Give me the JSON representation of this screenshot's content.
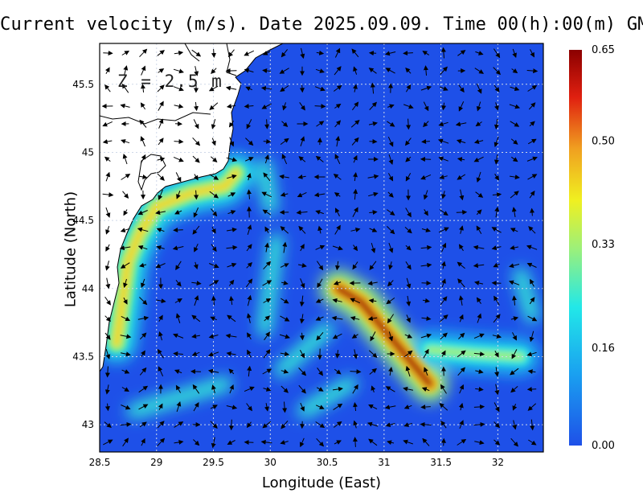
{
  "title": "Current velocity (m/s). Date 2025.09.09. Time 00(h):00(m) GMT",
  "depth_label": "Z = 2.5 m",
  "chart_data": {
    "type": "vector-field-map",
    "title": "Current velocity (m/s). Date 2025.09.09. Time 00(h):00(m) GMT",
    "annotation": "Z = 2.5 m",
    "xlabel": "Longitude (East)",
    "ylabel": "Latitude (North)",
    "xlim": [
      28.5,
      32.4
    ],
    "ylim": [
      42.8,
      45.8
    ],
    "xticks": [
      "28.5",
      "29",
      "29.5",
      "30",
      "30.5",
      "31",
      "31.5",
      "32"
    ],
    "yticks": [
      "43",
      "43.5",
      "44",
      "44.5",
      "45",
      "45.5"
    ],
    "colorbar": {
      "ticks": [
        "0.00",
        "0.16",
        "0.33",
        "0.50",
        "0.65"
      ],
      "range": [
        0.0,
        0.65
      ],
      "colors": [
        "#1e50e8",
        "#1aa0f0",
        "#22e8e8",
        "#9ef078",
        "#f0f020",
        "#f0a020",
        "#e02010",
        "#8b0000"
      ]
    },
    "grid": true,
    "jets": [
      {
        "name": "coastal",
        "path": [
          [
            29.7,
            44.85
          ],
          [
            29.6,
            44.75
          ],
          [
            29.3,
            44.7
          ],
          [
            29.0,
            44.6
          ],
          [
            28.85,
            44.4
          ],
          [
            28.75,
            44.2
          ],
          [
            28.7,
            43.9
          ],
          [
            28.65,
            43.6
          ]
        ],
        "speed": 0.4
      },
      {
        "name": "central",
        "path": [
          [
            30.6,
            44.0
          ],
          [
            30.8,
            43.9
          ],
          [
            31.0,
            43.7
          ],
          [
            31.2,
            43.5
          ],
          [
            31.4,
            43.3
          ]
        ],
        "speed": 0.62
      },
      {
        "name": "east",
        "path": [
          [
            31.4,
            43.55
          ],
          [
            31.8,
            43.52
          ],
          [
            32.2,
            43.5
          ]
        ],
        "speed": 0.28
      }
    ]
  }
}
